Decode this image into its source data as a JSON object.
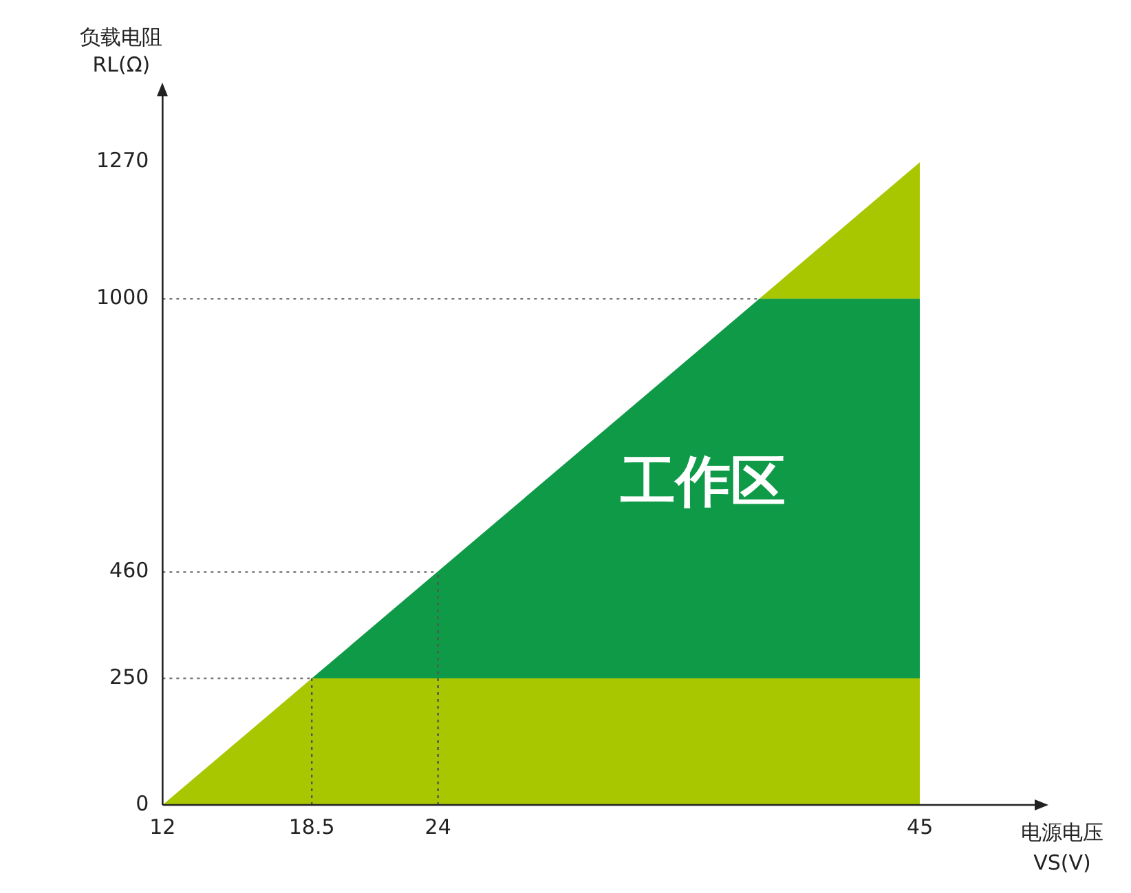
{
  "chart_data": {
    "type": "area",
    "xlabel": "电源电压\nVS(V)",
    "ylabel": "负载电阻\nRL(Ω)",
    "series": [
      {
        "color": "#a9c700",
        "values": [
          0,
          250,
          250,
          250
        ]
      },
      {
        "color": "#0f9a48",
        "values": [
          0,
          0,
          750,
          750
        ]
      },
      {
        "color": "#a9c700",
        "values": [
          0,
          0,
          0,
          270
        ]
      }
    ],
    "x": [
      12,
      18.5,
      38,
      45
    ],
    "stacked": true,
    "xlim": [
      12,
      50
    ],
    "ylim": [
      0,
      1400
    ],
    "xticks": [
      12,
      18.5,
      24,
      45
    ],
    "yticks": [
      0,
      250,
      460,
      1000,
      1270
    ],
    "ref_lines": [
      {
        "axis": "y",
        "value": 1000,
        "color": "#777777",
        "line_style": "dotted"
      },
      {
        "axis": "y",
        "value": 460,
        "color": "#777777",
        "line_style": "dotted"
      },
      {
        "axis": "y",
        "value": 250,
        "color": "#777777",
        "line_style": "dotted"
      },
      {
        "axis": "x",
        "value": 18.5,
        "color": "#555555",
        "line_style": "dotted"
      },
      {
        "axis": "x",
        "value": 24,
        "color": "#555555",
        "line_style": "dotted"
      }
    ],
    "annotations": [
      "工作区"
    ],
    "grid": false,
    "legend": false
  }
}
